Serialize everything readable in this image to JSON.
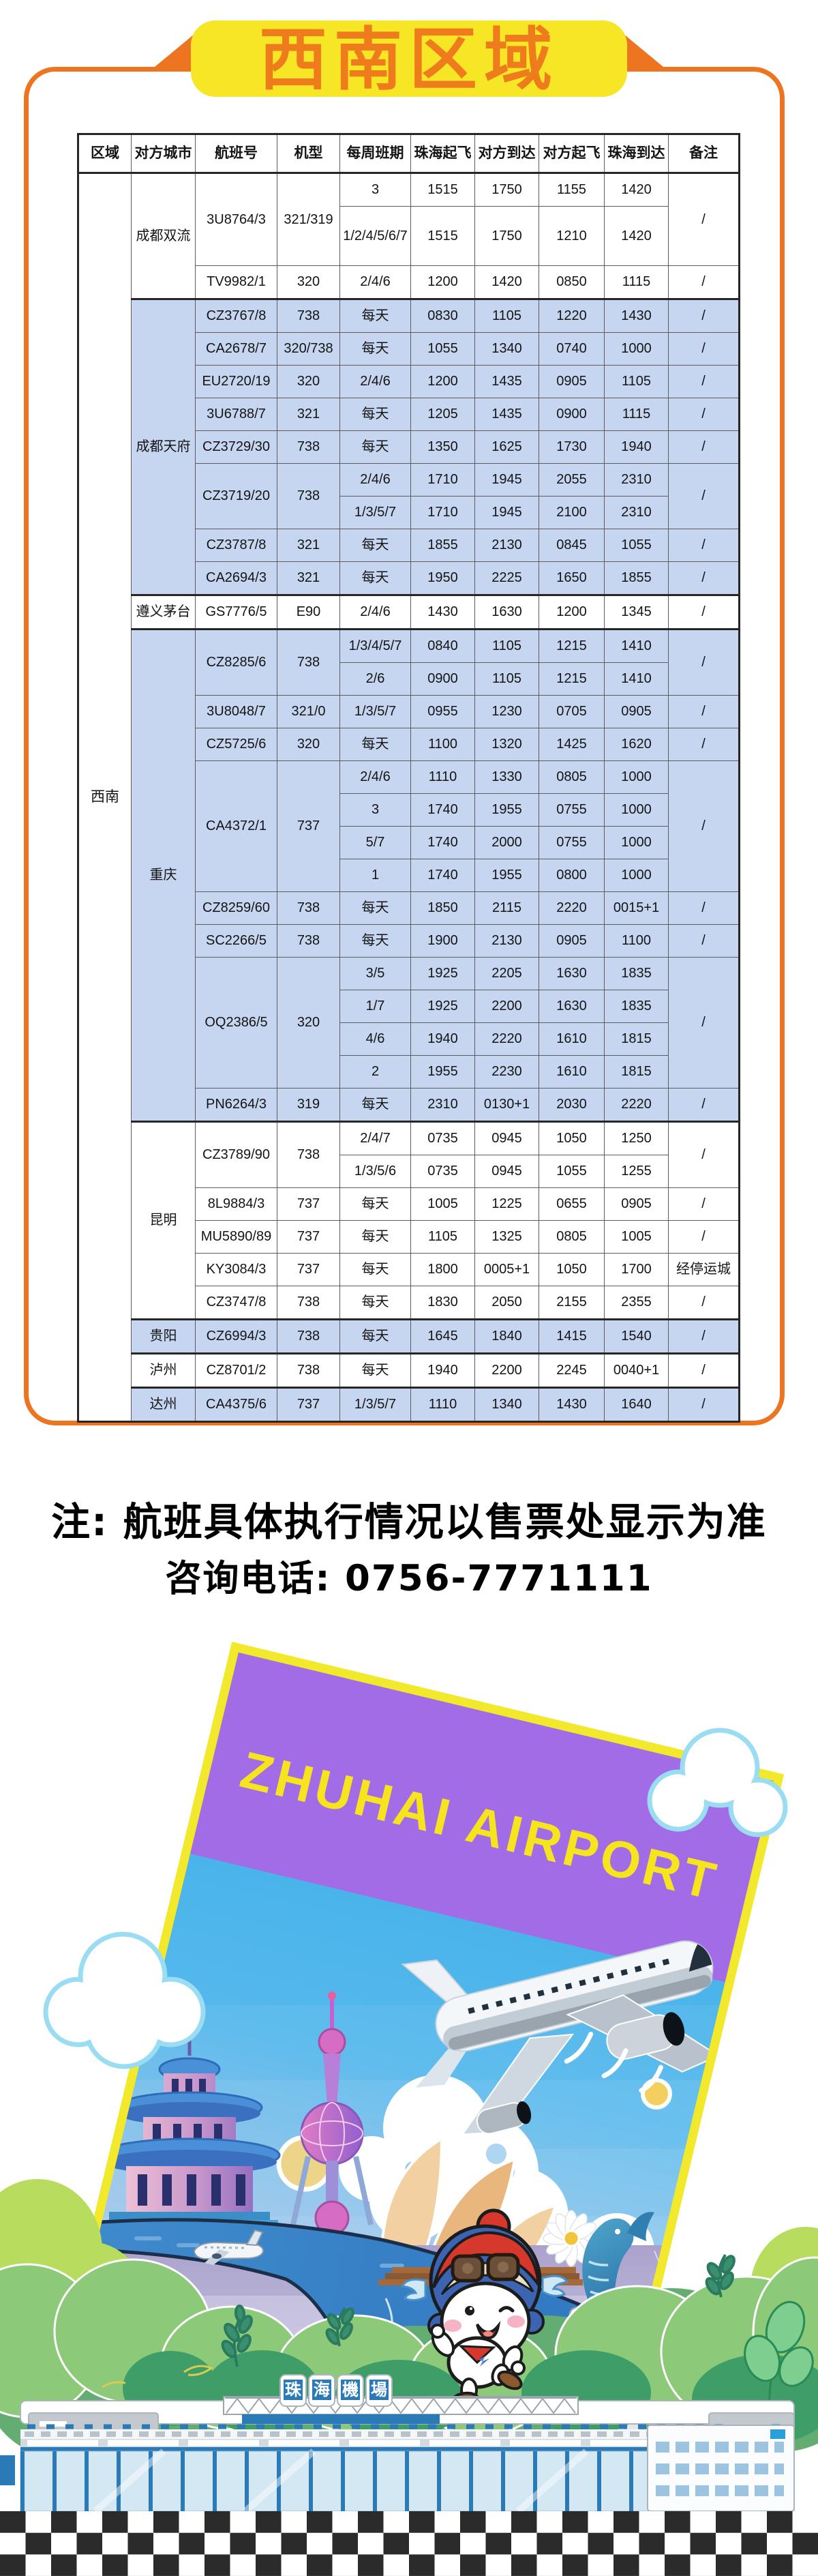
{
  "banner": {
    "title": "西南区域"
  },
  "table": {
    "columns": [
      "区域",
      "对方城市",
      "航班号",
      "机型",
      "每周班期",
      "珠海起飞",
      "对方到达",
      "对方起飞",
      "珠海到达",
      "备注"
    ],
    "region": "西南",
    "groups": [
      {
        "city": "成都双流",
        "shaded": false,
        "flights": [
          {
            "no": "3U8764/3",
            "type": "321/319",
            "remark": "/",
            "subs": [
              [
                "3",
                "1515",
                "1750",
                "1155",
                "1420"
              ],
              [
                "1/2/4/5/6/7",
                "1515",
                "1750",
                "1210",
                "1420"
              ]
            ]
          },
          {
            "no": "TV9982/1",
            "type": "320",
            "remark": "/",
            "subs": [
              [
                "2/4/6",
                "1200",
                "1420",
                "0850",
                "1115"
              ]
            ]
          }
        ]
      },
      {
        "city": "成都天府",
        "shaded": true,
        "flights": [
          {
            "no": "CZ3767/8",
            "type": "738",
            "remark": "/",
            "subs": [
              [
                "每天",
                "0830",
                "1105",
                "1220",
                "1430"
              ]
            ]
          },
          {
            "no": "CA2678/7",
            "type": "320/738",
            "remark": "/",
            "subs": [
              [
                "每天",
                "1055",
                "1340",
                "0740",
                "1000"
              ]
            ]
          },
          {
            "no": "EU2720/19",
            "type": "320",
            "remark": "/",
            "subs": [
              [
                "2/4/6",
                "1200",
                "1435",
                "0905",
                "1105"
              ]
            ]
          },
          {
            "no": "3U6788/7",
            "type": "321",
            "remark": "/",
            "subs": [
              [
                "每天",
                "1205",
                "1435",
                "0900",
                "1115"
              ]
            ]
          },
          {
            "no": "CZ3729/30",
            "type": "738",
            "remark": "/",
            "subs": [
              [
                "每天",
                "1350",
                "1625",
                "1730",
                "1940"
              ]
            ]
          },
          {
            "no": "CZ3719/20",
            "type": "738",
            "remark": "/",
            "subs": [
              [
                "2/4/6",
                "1710",
                "1945",
                "2055",
                "2310"
              ],
              [
                "1/3/5/7",
                "1710",
                "1945",
                "2100",
                "2310"
              ]
            ]
          },
          {
            "no": "CZ3787/8",
            "type": "321",
            "remark": "/",
            "subs": [
              [
                "每天",
                "1855",
                "2130",
                "0845",
                "1055"
              ]
            ]
          },
          {
            "no": "CA2694/3",
            "type": "321",
            "remark": "/",
            "subs": [
              [
                "每天",
                "1950",
                "2225",
                "1650",
                "1855"
              ]
            ]
          }
        ]
      },
      {
        "city": "遵义茅台",
        "shaded": false,
        "flights": [
          {
            "no": "GS7776/5",
            "type": "E90",
            "remark": "/",
            "subs": [
              [
                "2/4/6",
                "1430",
                "1630",
                "1200",
                "1345"
              ]
            ]
          }
        ]
      },
      {
        "city": "重庆",
        "shaded": true,
        "flights": [
          {
            "no": "CZ8285/6",
            "type": "738",
            "remark": "/",
            "subs": [
              [
                "1/3/4/5/7",
                "0840",
                "1105",
                "1215",
                "1410"
              ],
              [
                "2/6",
                "0900",
                "1105",
                "1215",
                "1410"
              ]
            ]
          },
          {
            "no": "3U8048/7",
            "type": "321/0",
            "remark": "/",
            "subs": [
              [
                "1/3/5/7",
                "0955",
                "1230",
                "0705",
                "0905"
              ]
            ]
          },
          {
            "no": "CZ5725/6",
            "type": "320",
            "remark": "/",
            "subs": [
              [
                "每天",
                "1100",
                "1320",
                "1425",
                "1620"
              ]
            ]
          },
          {
            "no": "CA4372/1",
            "type": "737",
            "remark": "/",
            "subs": [
              [
                "2/4/6",
                "1110",
                "1330",
                "0805",
                "1000"
              ],
              [
                "3",
                "1740",
                "1955",
                "0755",
                "1000"
              ],
              [
                "5/7",
                "1740",
                "2000",
                "0755",
                "1000"
              ],
              [
                "1",
                "1740",
                "1955",
                "0800",
                "1000"
              ]
            ]
          },
          {
            "no": "CZ8259/60",
            "type": "738",
            "remark": "/",
            "subs": [
              [
                "每天",
                "1850",
                "2115",
                "2220",
                "0015+1"
              ]
            ]
          },
          {
            "no": "SC2266/5",
            "type": "738",
            "remark": "/",
            "subs": [
              [
                "每天",
                "1900",
                "2130",
                "0905",
                "1100"
              ]
            ]
          },
          {
            "no": "OQ2386/5",
            "type": "320",
            "remark": "/",
            "subs": [
              [
                "3/5",
                "1925",
                "2205",
                "1630",
                "1835"
              ],
              [
                "1/7",
                "1925",
                "2200",
                "1630",
                "1835"
              ],
              [
                "4/6",
                "1940",
                "2220",
                "1610",
                "1815"
              ],
              [
                "2",
                "1955",
                "2230",
                "1610",
                "1815"
              ]
            ]
          },
          {
            "no": "PN6264/3",
            "type": "319",
            "remark": "/",
            "subs": [
              [
                "每天",
                "2310",
                "0130+1",
                "2030",
                "2220"
              ]
            ]
          }
        ]
      },
      {
        "city": "昆明",
        "shaded": false,
        "flights": [
          {
            "no": "CZ3789/90",
            "type": "738",
            "remark": "/",
            "subs": [
              [
                "2/4/7",
                "0735",
                "0945",
                "1050",
                "1250"
              ],
              [
                "1/3/5/6",
                "0735",
                "0945",
                "1055",
                "1255"
              ]
            ]
          },
          {
            "no": "8L9884/3",
            "type": "737",
            "remark": "/",
            "subs": [
              [
                "每天",
                "1005",
                "1225",
                "0655",
                "0905"
              ]
            ]
          },
          {
            "no": "MU5890/89",
            "type": "737",
            "remark": "/",
            "subs": [
              [
                "每天",
                "1105",
                "1325",
                "0805",
                "1005"
              ]
            ]
          },
          {
            "no": "KY3084/3",
            "type": "737",
            "remark": "经停运城",
            "subs": [
              [
                "每天",
                "1800",
                "0005+1",
                "1050",
                "1700"
              ]
            ]
          },
          {
            "no": "CZ3747/8",
            "type": "738",
            "remark": "/",
            "subs": [
              [
                "每天",
                "1830",
                "2050",
                "2155",
                "2355"
              ]
            ]
          }
        ]
      },
      {
        "city": "贵阳",
        "shaded": true,
        "flights": [
          {
            "no": "CZ6994/3",
            "type": "738",
            "remark": "/",
            "subs": [
              [
                "每天",
                "1645",
                "1840",
                "1415",
                "1540"
              ]
            ]
          }
        ]
      },
      {
        "city": "泸州",
        "shaded": false,
        "flights": [
          {
            "no": "CZ8701/2",
            "type": "738",
            "remark": "/",
            "subs": [
              [
                "每天",
                "1940",
                "2200",
                "2245",
                "0040+1"
              ]
            ]
          }
        ]
      },
      {
        "city": "达州",
        "shaded": true,
        "flights": [
          {
            "no": "CA4375/6",
            "type": "737",
            "remark": "/",
            "subs": [
              [
                "1/3/5/7",
                "1110",
                "1340",
                "1430",
                "1640"
              ]
            ]
          }
        ]
      }
    ]
  },
  "note": {
    "line1": "注: 航班具体执行情况以售票处显示为准",
    "line2": "咨询电话: 0756-7771111",
    "phone": "0756-7771111"
  },
  "illustration": {
    "poster_title": "ZHUHAI AIRPORT",
    "terminal_sign": "珠海機場",
    "terminal_sign_chars": [
      "珠",
      "海",
      "機",
      "場"
    ],
    "elements": [
      "airliner",
      "landing-airplane",
      "aviator-mascot",
      "temple-pagoda",
      "pearl-tower",
      "opera-sails",
      "canton-tower",
      "whale",
      "daisy-flower",
      "clouds",
      "sun-dots",
      "control-tower",
      "terminal-building",
      "trees",
      "checkered-strip"
    ]
  },
  "colors": {
    "accent_orange": "#ed7420",
    "banner_yellow": "#f7e626",
    "title_orange": "#ef7c1c",
    "row_blue": "#c6d5f0",
    "poster_purple": "#a16ce6",
    "poster_border_yellow": "#f2e92d",
    "poster_title_yellow": "#f6e41f",
    "sky_blue": "#41b0e9",
    "road_blue": "#2f7bc3",
    "land_lavender": "#bcb5d8",
    "checker_dark": "#2b2b2b"
  }
}
